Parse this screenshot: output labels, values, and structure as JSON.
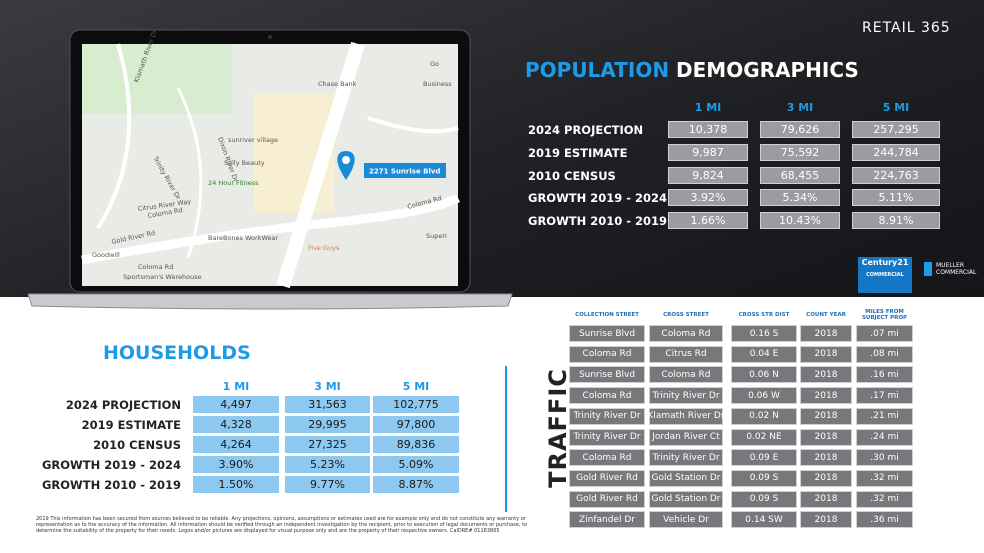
{
  "header": {
    "brand": "RETAIL 365"
  },
  "map": {
    "pin_label": "2271 Sunrise Blvd",
    "labels": [
      "Klamath River Dr",
      "Chase Bank",
      "Business",
      "sunriver village",
      "Sally Beauty",
      "24 Hour Fitness",
      "Coloma Rd",
      "Coloma Rd",
      "BareBones WorkWear",
      "Goodwill",
      "Five Guys",
      "Sportsman's Warehouse",
      "Coloma Rd",
      "Superi",
      "Citrus River Way",
      "Gold River Rd",
      "Dixon River Dr",
      "Trinity River Dr",
      "Go"
    ]
  },
  "population": {
    "title_accent": "POPULATION",
    "title_rest": "DEMOGRAPHICS",
    "columns": [
      "1 MI",
      "3 MI",
      "5 MI"
    ],
    "rows": [
      {
        "label": "2024 PROJECTION",
        "values": [
          "10,378",
          "79,626",
          "257,295"
        ]
      },
      {
        "label": "2019 ESTIMATE",
        "values": [
          "9,987",
          "75,592",
          "244,784"
        ]
      },
      {
        "label": "2010 CENSUS",
        "values": [
          "9,824",
          "68,455",
          "224,763"
        ]
      },
      {
        "label": "GROWTH 2019 - 2024",
        "values": [
          "3.92%",
          "5.34%",
          "5.11%"
        ]
      },
      {
        "label": "GROWTH 2010 - 2019",
        "values": [
          "1.66%",
          "10.43%",
          "8.91%"
        ]
      }
    ]
  },
  "households": {
    "title": "HOUSEHOLDS",
    "columns": [
      "1 MI",
      "3 MI",
      "5 MI"
    ],
    "rows": [
      {
        "label": "2024 PROJECTION",
        "values": [
          "4,497",
          "31,563",
          "102,775"
        ]
      },
      {
        "label": "2019 ESTIMATE",
        "values": [
          "4,328",
          "29,995",
          "97,800"
        ]
      },
      {
        "label": "2010 CENSUS",
        "values": [
          "4,264",
          "27,325",
          "89,836"
        ]
      },
      {
        "label": "GROWTH 2019 - 2024",
        "values": [
          "3.90%",
          "5.23%",
          "5.09%"
        ]
      },
      {
        "label": "GROWTH 2010 - 2019",
        "values": [
          "1.50%",
          "9.77%",
          "8.87%"
        ]
      }
    ]
  },
  "traffic": {
    "title": "TRAFFIC",
    "columns": [
      "COLLECTION STREET",
      "CROSS STREET",
      "CROSS STR DIST",
      "COUNT YEAR",
      "MILES FROM SUBJECT PROP"
    ],
    "rows": [
      [
        "Sunrise Blvd",
        "Coloma Rd",
        "0.16 S",
        "2018",
        ".07 mi"
      ],
      [
        "Coloma Rd",
        "Citrus Rd",
        "0.04 E",
        "2018",
        ".08 mi"
      ],
      [
        "Sunrise Blvd",
        "Coloma Rd",
        "0.06 N",
        "2018",
        ".16 mi"
      ],
      [
        "Coloma Rd",
        "Trinity River Dr",
        "0.06 W",
        "2018",
        ".17 mi"
      ],
      [
        "Trinity River Dr",
        "Klamath River Dr",
        "0.02 N",
        "2018",
        ".21 mi"
      ],
      [
        "Trinity River Dr",
        "Jordan River Ct",
        "0.02 NE",
        "2018",
        ".24 mi"
      ],
      [
        "Coloma Rd",
        "Trinity River Dr",
        "0.09 E",
        "2018",
        ".30 mi"
      ],
      [
        "Gold River Rd",
        "Gold Station Dr",
        "0.09 S",
        "2018",
        ".32 mi"
      ],
      [
        "Gold River Rd",
        "Gold Station Dr",
        "0.09 S",
        "2018",
        ".32 mi"
      ],
      [
        "Zinfandel Dr",
        "Vehicle Dr",
        "0.14 SW",
        "2018",
        ".36 mi"
      ]
    ]
  },
  "logos": {
    "century21": "Century21",
    "century21_sub": "COMMERCIAL",
    "mueller": "MUELLER COMMERCIAL"
  },
  "footer": {
    "disclaimer": "2019 This information has been secured from sources believed to be reliable. Any projections, opinions, assumptions or estimates used are for example only and do not constitute any warranty or representation as to the accuracy of the information. All information should be verified through an independent investigation by the recipient, prior to execution of legal documents or purchase, to determine the suitability of the property for their needs. Logos and/or pictures are displayed for visual purpose only and are the property of their respective owners. CalDRE# 01183865"
  }
}
